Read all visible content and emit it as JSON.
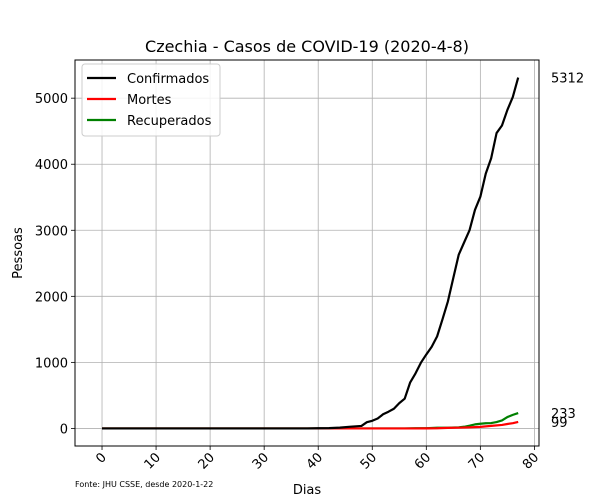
{
  "chart_data": {
    "type": "line",
    "title": "Czechia - Casos de COVID-19 (2020-4-8)",
    "xlabel": "Dias",
    "ylabel": "Pessoas",
    "xlim": [
      -5,
      80.85
    ],
    "ylim": [
      -266,
      5578
    ],
    "x_ticks": [
      0,
      10,
      20,
      30,
      40,
      50,
      60,
      70,
      80
    ],
    "y_ticks": [
      0,
      1000,
      2000,
      3000,
      4000,
      5000
    ],
    "grid": true,
    "legend_position": "top-left",
    "source": "Fonte: JHU CSSE, desde 2020-1-22",
    "series": [
      {
        "name": "Confirmados",
        "color": "#000000",
        "end_label": "5312",
        "points": [
          [
            0,
            0
          ],
          [
            38,
            0
          ],
          [
            40,
            3
          ],
          [
            42,
            5
          ],
          [
            44,
            12
          ],
          [
            46,
            26
          ],
          [
            47,
            32
          ],
          [
            48,
            38
          ],
          [
            49,
            94
          ],
          [
            50,
            116
          ],
          [
            51,
            150
          ],
          [
            52,
            214
          ],
          [
            53,
            253
          ],
          [
            54,
            298
          ],
          [
            55,
            383
          ],
          [
            56,
            450
          ],
          [
            57,
            694
          ],
          [
            58,
            833
          ],
          [
            59,
            995
          ],
          [
            60,
            1120
          ],
          [
            61,
            1236
          ],
          [
            62,
            1394
          ],
          [
            63,
            1654
          ],
          [
            64,
            1925
          ],
          [
            65,
            2279
          ],
          [
            66,
            2631
          ],
          [
            67,
            2817
          ],
          [
            68,
            3001
          ],
          [
            69,
            3308
          ],
          [
            70,
            3508
          ],
          [
            71,
            3858
          ],
          [
            72,
            4091
          ],
          [
            73,
            4472
          ],
          [
            74,
            4587
          ],
          [
            75,
            4822
          ],
          [
            76,
            5017
          ],
          [
            77,
            5312
          ]
        ]
      },
      {
        "name": "Mortes",
        "color": "#ff0000",
        "end_label": "99",
        "points": [
          [
            0,
            0
          ],
          [
            58,
            0
          ],
          [
            60,
            1
          ],
          [
            62,
            3
          ],
          [
            64,
            9
          ],
          [
            66,
            11
          ],
          [
            68,
            16
          ],
          [
            70,
            24
          ],
          [
            72,
            39
          ],
          [
            74,
            53
          ],
          [
            75,
            67
          ],
          [
            76,
            80
          ],
          [
            77,
            99
          ]
        ]
      },
      {
        "name": "Recuperados",
        "color": "#008000",
        "end_label": "233",
        "points": [
          [
            0,
            0
          ],
          [
            56,
            0
          ],
          [
            58,
            3
          ],
          [
            60,
            4
          ],
          [
            62,
            10
          ],
          [
            64,
            11
          ],
          [
            66,
            17
          ],
          [
            67,
            25
          ],
          [
            68,
            42
          ],
          [
            69,
            61
          ],
          [
            70,
            71
          ],
          [
            71,
            78
          ],
          [
            72,
            81
          ],
          [
            73,
            96
          ],
          [
            74,
            121
          ],
          [
            75,
            172
          ],
          [
            76,
            205
          ],
          [
            77,
            233
          ]
        ]
      }
    ]
  }
}
